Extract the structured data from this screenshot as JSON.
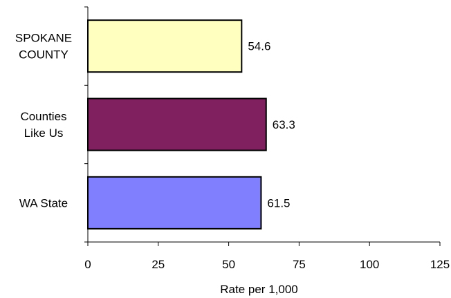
{
  "chart_data": {
    "type": "bar",
    "orientation": "horizontal",
    "categories": [
      [
        "SPOKANE",
        "COUNTY"
      ],
      [
        "Counties",
        "Like Us"
      ],
      [
        "WA State"
      ]
    ],
    "values": [
      54.6,
      63.3,
      61.5
    ],
    "value_labels": [
      "54.6",
      "63.3",
      "61.5"
    ],
    "colors": [
      "#ffffc0",
      "#80205f",
      "#8080ff"
    ],
    "xlabel": "Rate per 1,000",
    "xlim": [
      0,
      125
    ],
    "xticks": [
      0,
      25,
      50,
      75,
      100,
      125
    ],
    "xtick_labels": [
      "0",
      "25",
      "50",
      "75",
      "100",
      "125"
    ],
    "grid": false,
    "legend": "none"
  }
}
